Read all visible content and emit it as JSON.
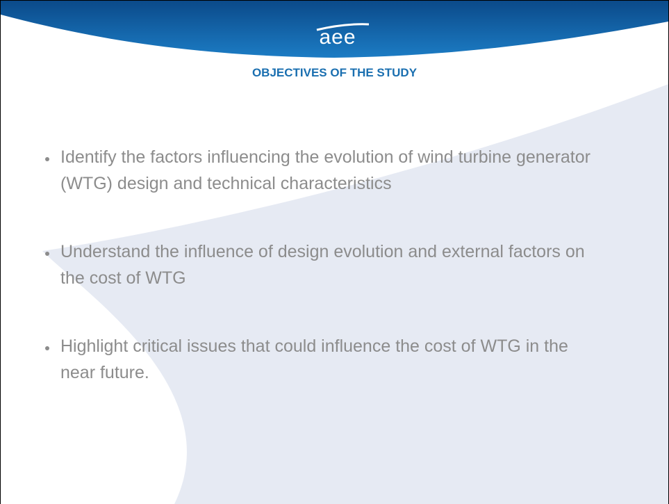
{
  "logo": "aee",
  "title": "OBJECTIVES OF THE STUDY",
  "bullets": [
    "Identify the factors influencing the evolution of wind turbine generator (WTG) design and technical characteristics",
    "Understand the influence of design evolution and external factors on the cost of WTG",
    "Highlight critical issues that could influence the cost of WTG in the near future."
  ]
}
